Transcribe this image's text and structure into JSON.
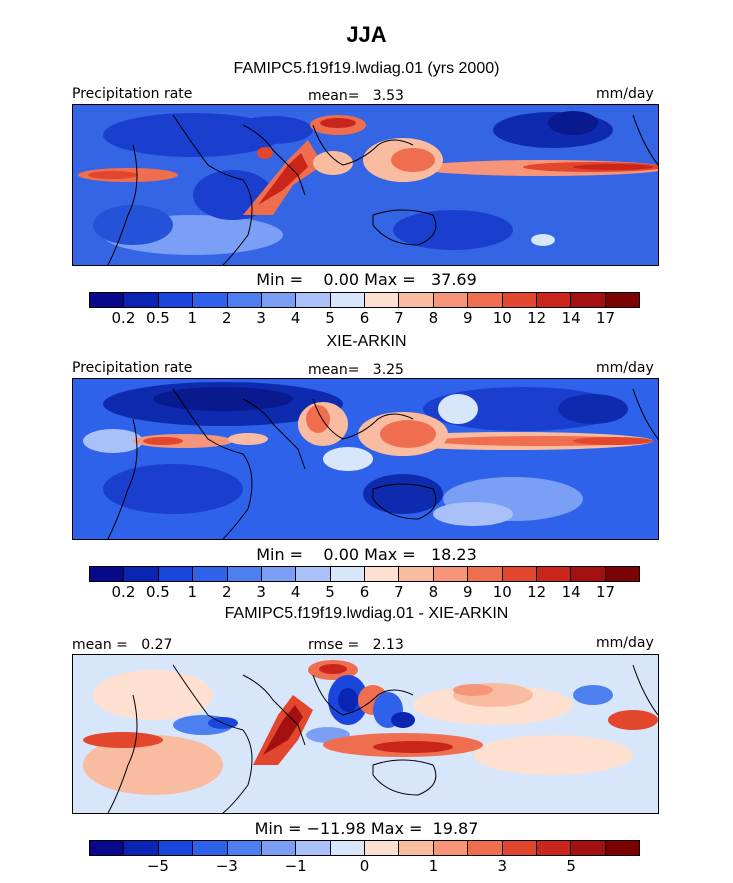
{
  "title": "JJA",
  "palette_precip": [
    "#08088c",
    "#0a24b4",
    "#1a46dc",
    "#2f62ea",
    "#4d7ff0",
    "#7a9ff4",
    "#a9c1f8",
    "#d8e6fb",
    "#fde0cf",
    "#f9bca1",
    "#f6957a",
    "#f06e50",
    "#e2462d",
    "#c9251a",
    "#a41010",
    "#7a0404"
  ],
  "palette_diff": [
    "#08088c",
    "#0a24b4",
    "#1a46dc",
    "#2f62ea",
    "#4d7ff0",
    "#7a9ff4",
    "#a9c1f8",
    "#d8e6fb",
    "#fde0cf",
    "#f9bca1",
    "#f6957a",
    "#f06e50",
    "#e2462d",
    "#c9251a",
    "#a41010",
    "#7a0404"
  ],
  "panels": [
    {
      "subtitle": "FAMIPC5.f19f19.lwdiag.01 (yrs 2000)",
      "left_label": "Precipitation rate",
      "center_label": "mean=   3.53",
      "right_label": "mm/day",
      "stats": "Min =    0.00 Max =   37.69",
      "tick_labels": [
        "0.2",
        "0.5",
        "1",
        "2",
        "3",
        "4",
        "5",
        "6",
        "7",
        "8",
        "9",
        "10",
        "12",
        "14",
        "17"
      ]
    },
    {
      "subtitle": "XIE-ARKIN",
      "left_label": "Precipitation rate",
      "center_label": "mean=   3.25",
      "right_label": "mm/day",
      "stats": "Min =    0.00 Max =   18.23",
      "tick_labels": [
        "0.2",
        "0.5",
        "1",
        "2",
        "3",
        "4",
        "5",
        "6",
        "7",
        "8",
        "9",
        "10",
        "12",
        "14",
        "17"
      ]
    },
    {
      "subtitle": "FAMIPC5.f19f19.lwdiag.01 - XIE-ARKIN",
      "left_label": "mean =   0.27",
      "center_label": "rmse =   2.13",
      "right_label": "mm/day",
      "stats": "Min = −11.98 Max =  19.87",
      "tick_labels": [
        "−5",
        "−3",
        "−1",
        "0",
        "1",
        "3",
        "5"
      ]
    }
  ]
}
